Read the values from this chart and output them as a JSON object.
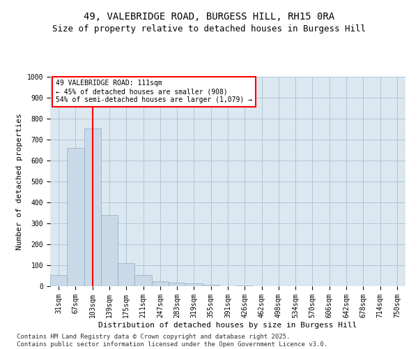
{
  "title1": "49, VALEBRIDGE ROAD, BURGESS HILL, RH15 0RA",
  "title2": "Size of property relative to detached houses in Burgess Hill",
  "xlabel": "Distribution of detached houses by size in Burgess Hill",
  "ylabel": "Number of detached properties",
  "categories": [
    "31sqm",
    "67sqm",
    "103sqm",
    "139sqm",
    "175sqm",
    "211sqm",
    "247sqm",
    "283sqm",
    "319sqm",
    "355sqm",
    "391sqm",
    "426sqm",
    "462sqm",
    "498sqm",
    "534sqm",
    "570sqm",
    "606sqm",
    "642sqm",
    "678sqm",
    "714sqm",
    "750sqm"
  ],
  "values": [
    52,
    660,
    755,
    340,
    110,
    52,
    25,
    18,
    12,
    8,
    0,
    5,
    0,
    0,
    0,
    0,
    0,
    0,
    0,
    0,
    0
  ],
  "bar_color": "#c9d9e8",
  "bar_edge_color": "#8aafc8",
  "vline_x": 2,
  "vline_color": "red",
  "annotation_box_text": "49 VALEBRIDGE ROAD: 111sqm\n← 45% of detached houses are smaller (908)\n54% of semi-detached houses are larger (1,079) →",
  "annotation_box_facecolor": "white",
  "annotation_box_edgecolor": "red",
  "annotation_fontsize": 7,
  "ylim": [
    0,
    1000
  ],
  "yticks": [
    0,
    100,
    200,
    300,
    400,
    500,
    600,
    700,
    800,
    900,
    1000
  ],
  "grid_color": "#b0c4d8",
  "background_color": "#dce8f0",
  "footer_text": "Contains HM Land Registry data © Crown copyright and database right 2025.\nContains public sector information licensed under the Open Government Licence v3.0.",
  "title_fontsize": 10,
  "subtitle_fontsize": 9,
  "footer_fontsize": 6.5,
  "tick_fontsize": 7,
  "ylabel_fontsize": 8,
  "xlabel_fontsize": 8
}
